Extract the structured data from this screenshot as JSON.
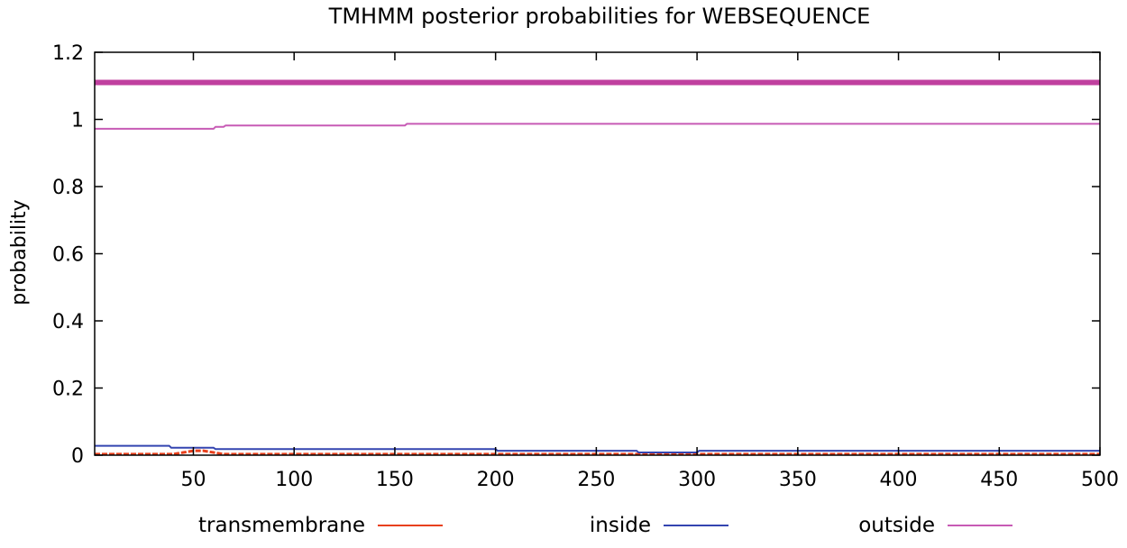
{
  "chart_data": {
    "type": "line",
    "title": "TMHMM posterior probabilities for WEBSEQUENCE",
    "xlabel": "",
    "ylabel": "probability",
    "xlim": [
      1,
      500
    ],
    "ylim": [
      0,
      1.2
    ],
    "x_ticks": [
      50,
      100,
      150,
      200,
      250,
      300,
      350,
      400,
      450,
      500
    ],
    "y_ticks": [
      0,
      0.2,
      0.4,
      0.6,
      0.8,
      1,
      1.2
    ],
    "grid": false,
    "legend_position": "bottom",
    "top_bar": {
      "y": 1.11,
      "color": "#c0409f"
    },
    "series": [
      {
        "name": "transmembrane",
        "color": "#e8401c",
        "x": [
          1,
          40,
          45,
          50,
          55,
          60,
          65,
          500
        ],
        "y": [
          0.003,
          0.003,
          0.008,
          0.013,
          0.013,
          0.008,
          0.003,
          0.003
        ]
      },
      {
        "name": "inside",
        "color": "#3445b0",
        "x": [
          1,
          38,
          39,
          60,
          61,
          200,
          201,
          270,
          271,
          300,
          301,
          500
        ],
        "y": [
          0.028,
          0.028,
          0.022,
          0.022,
          0.018,
          0.018,
          0.013,
          0.013,
          0.008,
          0.008,
          0.013,
          0.013
        ]
      },
      {
        "name": "outside",
        "color": "#c75bb5",
        "x": [
          1,
          60,
          61,
          65,
          66,
          155,
          156,
          500
        ],
        "y": [
          0.972,
          0.972,
          0.978,
          0.978,
          0.982,
          0.982,
          0.987,
          0.987
        ]
      }
    ]
  }
}
